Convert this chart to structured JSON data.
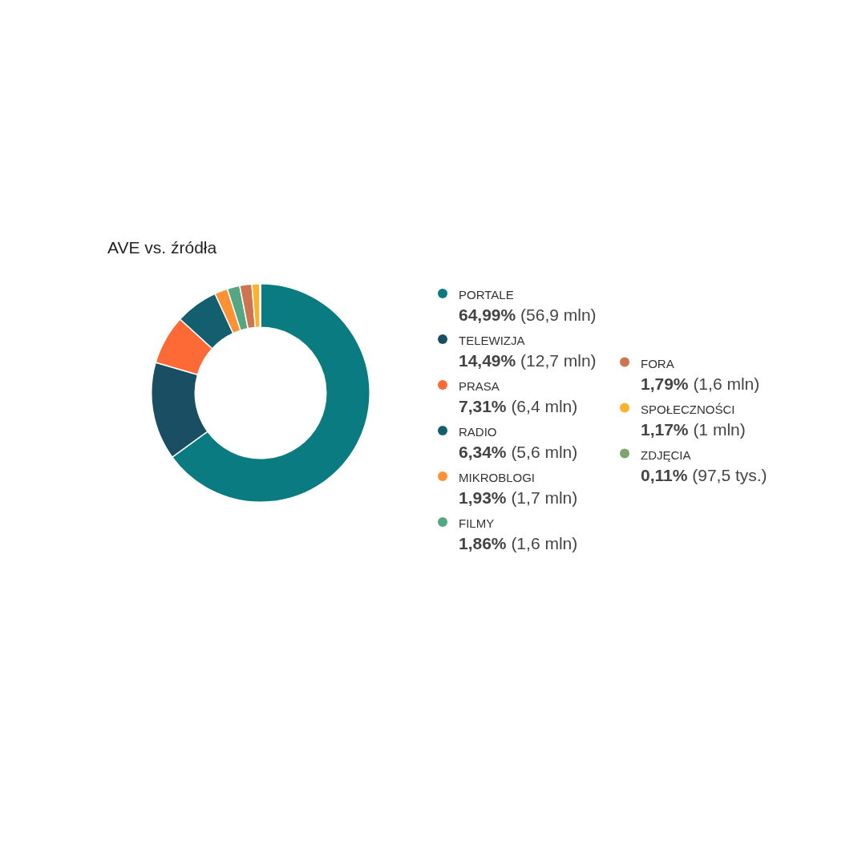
{
  "chart_data": {
    "type": "donut",
    "title": "AVE vs. źródła",
    "categories": [
      "PORTALE",
      "TELEWIZJA",
      "PRASA",
      "RADIO",
      "MIKROBLOGI",
      "FILMY",
      "FORA",
      "SPOŁECZNOŚCI",
      "ZDJĘCIA"
    ],
    "values": [
      64.99,
      14.49,
      7.31,
      6.34,
      1.93,
      1.86,
      1.79,
      1.17,
      0.11
    ],
    "value_labels": [
      "64,99% (56,9 mln)",
      "14,49% (12,7 mln)",
      "7,31% (6,4 mln)",
      "6,34% (5,6 mln)",
      "1,93% (1,7 mln)",
      "1,86% (1,6 mln)",
      "1,79% (1,6 mln)",
      "1,17% (1 mln)",
      "0,11% (97,5 tys.)"
    ],
    "colors": [
      "#0a7b80",
      "#1a4f63",
      "#fd6a35",
      "#135f6f",
      "#fd9133",
      "#55a783",
      "#cc7550",
      "#fdb22d",
      "#7fa36e"
    ],
    "legend": "right"
  }
}
